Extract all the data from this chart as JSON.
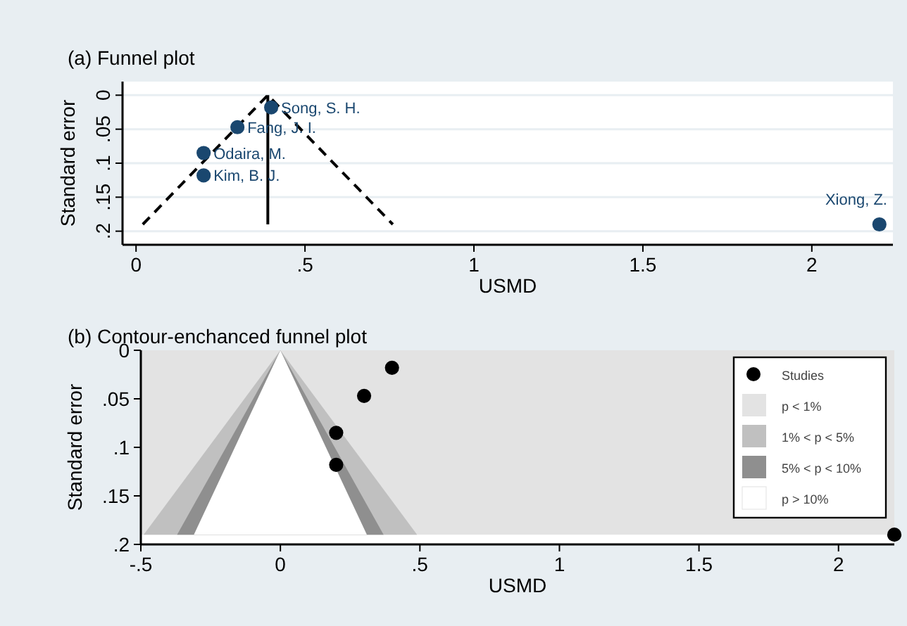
{
  "chart_data": [
    {
      "type": "scatter",
      "title": "(a) Funnel plot",
      "xlabel": "USMD",
      "ylabel": "Standard error",
      "xlim": [
        -0.04,
        2.24
      ],
      "ylim": [
        0.22,
        -0.02
      ],
      "xticks": [
        0,
        {
          "value": 0.5,
          "label": ".5"
        },
        1,
        {
          "value": 1.5,
          "label": "1.5"
        },
        2
      ],
      "yticks": [
        0,
        {
          "value": 0.05,
          "label": ".05"
        },
        {
          "value": 0.1,
          "label": ".1"
        },
        {
          "value": 0.15,
          "label": ".15"
        },
        {
          "value": 0.2,
          "label": ".2"
        }
      ],
      "grid": "y",
      "series": [
        {
          "type": "line",
          "color": "#000000",
          "line_style": "dashed",
          "x": [
            0.02,
            0.39,
            0.76
          ],
          "values": [
            0.19,
            0,
            0.19
          ]
        },
        {
          "type": "line",
          "color": "#000000",
          "line_style": "solid",
          "x": [
            0.39,
            0.39
          ],
          "values": [
            0,
            0.19
          ]
        },
        {
          "color": "#1a476f",
          "marker": "circle",
          "x": [
            0.4,
            0.3,
            0.2,
            0.2,
            2.2
          ],
          "values": [
            0.018,
            0.047,
            0.085,
            0.118,
            0.19
          ]
        }
      ],
      "annotations": [
        {
          "text": "Song, S. H.",
          "x": 0.4,
          "y": 0.018
        },
        {
          "text": "Fang, J. I.",
          "x": 0.3,
          "y": 0.047
        },
        {
          "text": "Odaira, M.",
          "x": 0.2,
          "y": 0.085
        },
        {
          "text": "Kim, B. J.",
          "x": 0.2,
          "y": 0.118
        },
        {
          "text": "Xiong,  Z.",
          "x": 2.2,
          "y": 0.19
        }
      ]
    },
    {
      "type": "scatter",
      "title": "(b) Contour-enchanced funnel plot",
      "xlabel": "USMD",
      "ylabel": "Standard error",
      "xlim": [
        -0.5,
        2.2
      ],
      "ylim": [
        0.2,
        0
      ],
      "xticks": [
        {
          "value": -0.5,
          "label": "-.5"
        },
        0,
        {
          "value": 0.5,
          "label": ".5"
        },
        1,
        {
          "value": 1.5,
          "label": "1.5"
        },
        2
      ],
      "yticks": [
        0,
        {
          "value": 0.05,
          "label": ".05"
        },
        {
          "value": 0.1,
          "label": ".1"
        },
        {
          "value": 0.15,
          "label": ".15"
        },
        {
          "value": 0.2,
          "label": ".2"
        }
      ],
      "legend": "top right",
      "bands": [
        {
          "axis": "y",
          "from": 0,
          "to": 0.19,
          "color": "#e3e3e3",
          "label": "p < 1%"
        }
      ],
      "series": [
        {
          "type": "area",
          "name": "1% < p < 5%",
          "color": "#c0c0c0",
          "x": [
            -0.49,
            0,
            0.49
          ],
          "values": [
            0.19,
            0,
            0.19
          ]
        },
        {
          "type": "area",
          "name": "5% < p < 10%",
          "color": "#8f8f8f",
          "x": [
            -0.37,
            0,
            0.37
          ],
          "values": [
            0.19,
            0,
            0.19
          ]
        },
        {
          "type": "area",
          "name": "p > 10%",
          "color": "#ffffff",
          "x": [
            -0.31,
            0,
            0.31
          ],
          "values": [
            0.19,
            0,
            0.19
          ]
        },
        {
          "name": "Studies",
          "color": "#000000",
          "marker": "circle",
          "x": [
            0.4,
            0.3,
            0.2,
            0.2,
            2.2
          ],
          "values": [
            0.018,
            0.047,
            0.085,
            0.118,
            0.19
          ]
        }
      ]
    }
  ]
}
